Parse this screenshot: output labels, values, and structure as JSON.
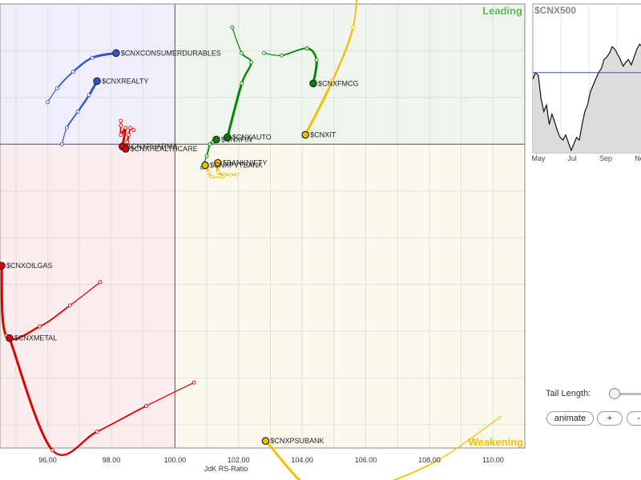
{
  "quadrants": {
    "leading": {
      "label": "Leading",
      "color": "#5cb85c",
      "fill": "#eef5ec"
    },
    "weakening": {
      "label": "Weakening",
      "color": "#f0c000",
      "fill": "#fbf9ee"
    },
    "lagging": {
      "fill": "#fbeded"
    },
    "improving": {
      "fill": "#eeeffa"
    }
  },
  "chart_data": {
    "type": "scatter",
    "subtype": "relative-rotation-graph",
    "xlabel": "JdK RS-Ratio",
    "xlim": [
      94.5,
      111
    ],
    "ylim": [
      93.5,
      103
    ],
    "x_ticks": [
      "96.00",
      "98.00",
      "100.00",
      "102.00",
      "104.00",
      "106.00",
      "108.00",
      "110.00"
    ],
    "center": [
      100,
      100
    ],
    "series": [
      {
        "name": "$CNXCONSUMERDURABLES",
        "color": "#3355cc",
        "head": [
          98.15,
          101.95
        ],
        "tail": [
          [
            96.0,
            100.9
          ],
          [
            96.3,
            101.2
          ],
          [
            96.8,
            101.55
          ],
          [
            97.4,
            101.85
          ],
          [
            98.15,
            101.95
          ]
        ]
      },
      {
        "name": "$CNXREALTY",
        "color": "#3355cc",
        "head": [
          97.55,
          101.35
        ],
        "tail": [
          [
            96.45,
            100.0
          ],
          [
            96.6,
            100.35
          ],
          [
            96.95,
            100.7
          ],
          [
            97.3,
            101.05
          ],
          [
            97.55,
            101.35
          ]
        ]
      },
      {
        "name": "$CNXPHARMA",
        "color": "#e00000",
        "head": [
          98.35,
          99.95
        ],
        "tail": [
          [
            98.3,
            100.5
          ],
          [
            98.3,
            100.4
          ],
          [
            98.3,
            100.2
          ],
          [
            98.45,
            100.35
          ],
          [
            98.35,
            99.95
          ]
        ]
      },
      {
        "name": "$CNXHEALTHCARE",
        "color": "#e00000",
        "head": [
          98.45,
          99.9
        ],
        "tail": [
          [
            98.7,
            100.3
          ],
          [
            98.6,
            100.35
          ],
          [
            98.55,
            100.2
          ],
          [
            98.5,
            100.05
          ],
          [
            98.45,
            99.9
          ]
        ]
      },
      {
        "name": "$CNXAUTO",
        "color": "#008800",
        "head": [
          101.65,
          100.15
        ],
        "tail": [
          [
            101.8,
            102.5
          ],
          [
            102.1,
            101.95
          ],
          [
            102.4,
            101.75
          ],
          [
            102.1,
            101.3
          ],
          [
            101.65,
            100.15
          ]
        ]
      },
      {
        "name": "$CNXFIN",
        "color": "#008800",
        "head": [
          101.3,
          100.1
        ],
        "tail": [
          [
            100.85,
            99.5
          ],
          [
            101.0,
            99.75
          ],
          [
            101.1,
            100.0
          ],
          [
            101.2,
            100.05
          ],
          [
            101.3,
            100.1
          ]
        ]
      },
      {
        "name": "$CNXFMCG",
        "color": "#008800",
        "head": [
          104.35,
          101.3
        ],
        "tail": [
          [
            102.8,
            101.95
          ],
          [
            103.35,
            101.9
          ],
          [
            104.15,
            102.05
          ],
          [
            104.45,
            101.8
          ],
          [
            104.35,
            101.3
          ]
        ]
      },
      {
        "name": "$CNXIT",
        "color": "#f0c000",
        "head": [
          104.1,
          100.2
        ],
        "tail": [
          [
            105.35,
            104.1
          ],
          [
            105.7,
            103.55
          ],
          [
            105.6,
            102.5
          ],
          [
            104.95,
            101.35
          ],
          [
            104.1,
            100.2
          ]
        ]
      },
      {
        "name": "$BANKNIFTY",
        "color": "#f0c000",
        "head": [
          101.35,
          99.6
        ],
        "tail": [
          [
            101.75,
            99.35
          ],
          [
            101.95,
            99.35
          ],
          [
            101.55,
            99.35
          ],
          [
            101.35,
            99.4
          ],
          [
            101.35,
            99.6
          ]
        ]
      },
      {
        "name": "$CNXPVTBANK",
        "color": "#f0c000",
        "head": [
          100.95,
          99.55
        ],
        "tail": [
          [
            101.5,
            99.3
          ],
          [
            101.15,
            99.3
          ],
          [
            101.05,
            99.4
          ],
          [
            101.0,
            99.5
          ],
          [
            100.95,
            99.55
          ]
        ]
      },
      {
        "name": "$CNXOILGAS",
        "color": "#e00000",
        "head": [
          94.55,
          97.4
        ],
        "tail": [
          [
            97.65,
            97.05
          ],
          [
            96.7,
            96.55
          ],
          [
            95.75,
            96.1
          ],
          [
            94.7,
            95.9
          ],
          [
            94.55,
            97.4
          ]
        ]
      },
      {
        "name": "$CNXMETAL",
        "color": "#e00000",
        "head": [
          94.8,
          95.85
        ],
        "tail": [
          [
            100.6,
            94.9
          ],
          [
            99.1,
            94.4
          ],
          [
            97.55,
            93.85
          ],
          [
            96.15,
            93.45
          ],
          [
            94.8,
            95.85
          ]
        ]
      },
      {
        "name": "$CNXPSUBANK",
        "color": "#f0c000",
        "head": [
          102.85,
          93.65
        ],
        "tail": [
          [
            110.2,
            94.15
          ],
          [
            108.3,
            93.25
          ],
          [
            106.4,
            92.7
          ],
          [
            104.6,
            92.45
          ],
          [
            102.85,
            93.65
          ]
        ]
      }
    ]
  },
  "mini_chart": {
    "title": "$CNX500",
    "months": [
      "May",
      "Jul",
      "Sep",
      "No"
    ],
    "series": [
      55,
      60,
      58,
      40,
      30,
      35,
      20,
      28,
      22,
      15,
      10,
      8,
      12,
      6,
      0,
      5,
      10,
      8,
      20,
      30,
      35,
      45,
      50,
      55,
      60,
      63,
      70,
      72,
      75,
      80,
      78,
      74,
      70,
      65,
      68,
      70,
      66,
      72,
      78,
      82,
      80,
      78
    ],
    "reference": 60
  },
  "controls": {
    "tail_length_label": "Tail Length:",
    "tail_length_value": 0.15,
    "animate_label": "animate",
    "plus_label": "+",
    "minus_label": "-"
  }
}
